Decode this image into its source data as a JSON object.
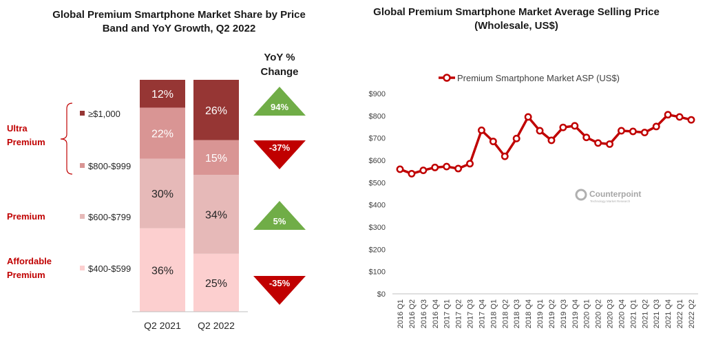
{
  "left_panel": {
    "title": "Global Premium Smartphone Market Share by Price Band and YoY Growth, Q2 2022",
    "yoy_header": "YoY % Change",
    "groups": [
      "Ultra Premium",
      "Premium",
      "Affordable Premium"
    ],
    "price_bands": [
      "≥$1,000",
      "$800-$999",
      "$600-$799",
      "$400-$599"
    ],
    "colors": [
      "#963634",
      "#d99594",
      "#e6b9b8",
      "#fccfcf"
    ]
  },
  "right_panel": {
    "title": "Global Premium Smartphone Market Average Selling Price (Wholesale, US$)",
    "watermark": "Counterpoint",
    "watermark_sub": "Technology Market Research"
  },
  "chart_data": [
    {
      "type": "bar",
      "title": "Global Premium Smartphone Market Share by Price Band and YoY Growth, Q2 2022",
      "stacked": true,
      "categories": [
        "Q2 2021",
        "Q2 2022"
      ],
      "series": [
        {
          "name": "$400-$599",
          "values": [
            36,
            25
          ],
          "labels": [
            "36%",
            "25%"
          ],
          "color": "#fccfcf"
        },
        {
          "name": "$600-$799",
          "values": [
            30,
            34
          ],
          "labels": [
            "30%",
            "34%"
          ],
          "color": "#e6b9b8"
        },
        {
          "name": "$800-$999",
          "values": [
            22,
            15
          ],
          "labels": [
            "22%",
            "15%"
          ],
          "color": "#d99594"
        },
        {
          "name": "≥$1,000",
          "values": [
            12,
            26
          ],
          "labels": [
            "12%",
            "26%"
          ],
          "color": "#963634"
        }
      ],
      "yoy_change": [
        {
          "band": "≥$1,000",
          "label": "94%",
          "direction": "up",
          "color": "#70ad47"
        },
        {
          "band": "$800-$999",
          "label": "-37%",
          "direction": "down",
          "color": "#c00000"
        },
        {
          "band": "$600-$799",
          "label": "5%",
          "direction": "up",
          "color": "#70ad47"
        },
        {
          "band": "$400-$599",
          "label": "-35%",
          "direction": "down",
          "color": "#c00000"
        }
      ]
    },
    {
      "type": "line",
      "title": "Global Premium Smartphone Market Average Selling Price (Wholesale, US$)",
      "categories": [
        "2016 Q1",
        "2016 Q2",
        "2016 Q3",
        "2016 Q4",
        "2017 Q1",
        "2017 Q2",
        "2017 Q3",
        "2017 Q4",
        "2018 Q1",
        "2018 Q2",
        "2018 Q3",
        "2018 Q4",
        "2019 Q1",
        "2019 Q2",
        "2019 Q3",
        "2019 Q4",
        "2020 Q1",
        "2020 Q2",
        "2020 Q3",
        "2020 Q4",
        "2021 Q1",
        "2021 Q2",
        "2021 Q3",
        "2021 Q4",
        "2022 Q1",
        "2022 Q2"
      ],
      "series": [
        {
          "name": "Premium Smartphone Market ASP (US$)",
          "values": [
            560,
            540,
            555,
            568,
            572,
            563,
            585,
            735,
            685,
            618,
            698,
            795,
            733,
            690,
            748,
            755,
            703,
            678,
            673,
            733,
            730,
            725,
            752,
            805,
            795,
            782
          ],
          "color": "#c00000"
        }
      ],
      "ylim": [
        0,
        900
      ],
      "yticks": [
        0,
        100,
        200,
        300,
        400,
        500,
        600,
        700,
        800,
        900
      ],
      "ytick_labels": [
        "$0",
        "$100",
        "$200",
        "$300",
        "$400",
        "$500",
        "$600",
        "$700",
        "$800",
        "$900"
      ],
      "legend": "top",
      "grid": false
    }
  ]
}
